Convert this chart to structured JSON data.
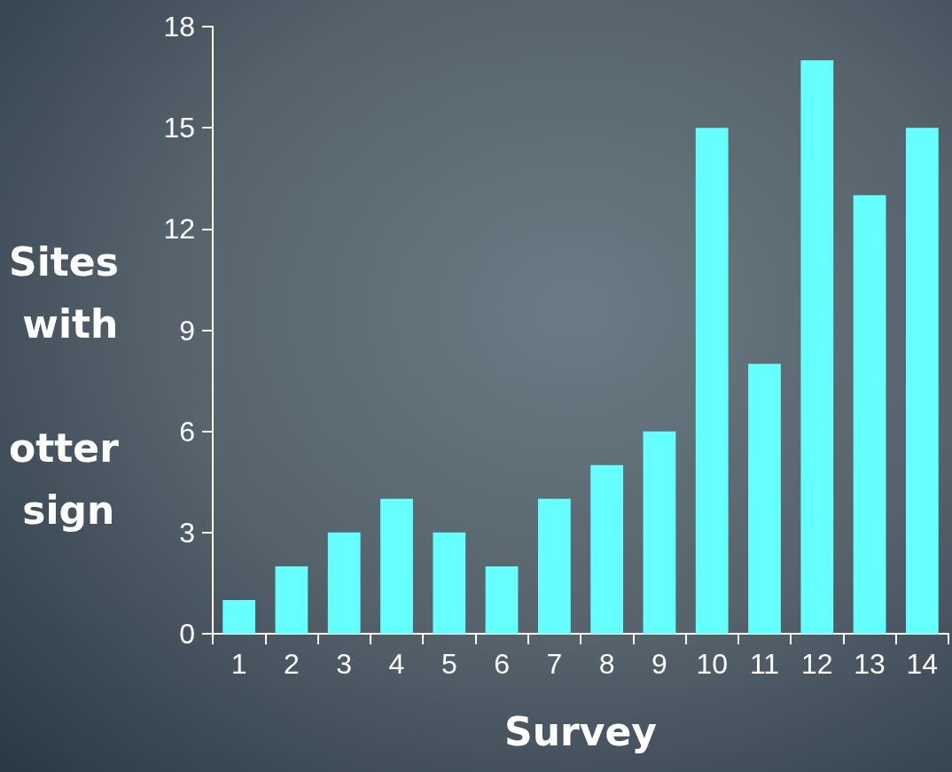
{
  "chart_data": {
    "type": "bar",
    "xlabel": "Survey",
    "ylabel": "Sites with otter sign",
    "categories": [
      "1",
      "2",
      "3",
      "4",
      "5",
      "6",
      "7",
      "8",
      "9",
      "10",
      "11",
      "12",
      "13",
      "14"
    ],
    "values": [
      1,
      2,
      3,
      4,
      3,
      2,
      4,
      5,
      6,
      15,
      8,
      17,
      13,
      15
    ],
    "color": "#66ffff",
    "ylim": [
      0,
      18
    ],
    "yticks": [
      0,
      3,
      6,
      9,
      12,
      15,
      18
    ],
    "grid": false
  }
}
